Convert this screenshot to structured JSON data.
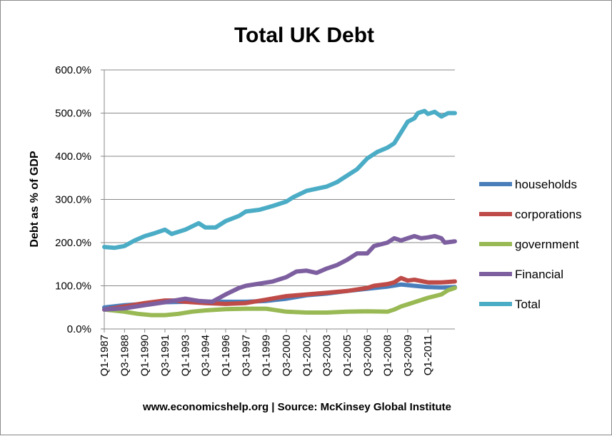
{
  "chart_data": {
    "type": "line",
    "title": "Total UK Debt",
    "ylabel": "Debt as % of GDP",
    "source_note": "www.economicshelp.org | Source: McKinsey Global Institute",
    "ylim": [
      0,
      600
    ],
    "y_ticks": [
      "0.0%",
      "100.0%",
      "200.0%",
      "300.0%",
      "400.0%",
      "500.0%",
      "600.0%"
    ],
    "x_tick_labels": [
      "Q1-1987",
      "Q3-1988",
      "Q1-1990",
      "Q3-1991",
      "Q1-1993",
      "Q3-1994",
      "Q1-1996",
      "Q3-1997",
      "Q1-1999",
      "Q3-2000",
      "Q1-2002",
      "Q3-2003",
      "Q1-2005",
      "Q3-2006",
      "Q1-2008",
      "Q3-2009",
      "Q1-2011"
    ],
    "x_tick_step_quarters": 6,
    "grid": "horizontal",
    "legend": "right",
    "series": [
      {
        "name": "households",
        "color": "#4a7ebb",
        "points": [
          [
            0,
            50
          ],
          [
            6,
            55
          ],
          [
            12,
            58
          ],
          [
            18,
            62
          ],
          [
            24,
            63
          ],
          [
            30,
            63
          ],
          [
            36,
            63
          ],
          [
            42,
            63
          ],
          [
            48,
            65
          ],
          [
            54,
            70
          ],
          [
            60,
            78
          ],
          [
            66,
            82
          ],
          [
            72,
            88
          ],
          [
            78,
            93
          ],
          [
            84,
            98
          ],
          [
            88,
            103
          ],
          [
            92,
            100
          ],
          [
            96,
            97
          ],
          [
            100,
            96
          ],
          [
            104,
            97
          ]
        ]
      },
      {
        "name": "corporations",
        "color": "#be4b48",
        "points": [
          [
            0,
            45
          ],
          [
            6,
            52
          ],
          [
            12,
            60
          ],
          [
            18,
            66
          ],
          [
            21,
            66
          ],
          [
            24,
            63
          ],
          [
            30,
            60
          ],
          [
            36,
            58
          ],
          [
            42,
            60
          ],
          [
            48,
            68
          ],
          [
            54,
            76
          ],
          [
            60,
            80
          ],
          [
            66,
            84
          ],
          [
            72,
            88
          ],
          [
            78,
            95
          ],
          [
            80,
            100
          ],
          [
            84,
            104
          ],
          [
            86,
            108
          ],
          [
            88,
            118
          ],
          [
            90,
            112
          ],
          [
            92,
            114
          ],
          [
            96,
            108
          ],
          [
            100,
            108
          ],
          [
            104,
            110
          ]
        ]
      },
      {
        "name": "government",
        "color": "#98b954",
        "points": [
          [
            0,
            45
          ],
          [
            6,
            40
          ],
          [
            10,
            35
          ],
          [
            14,
            32
          ],
          [
            18,
            32
          ],
          [
            22,
            35
          ],
          [
            26,
            40
          ],
          [
            30,
            43
          ],
          [
            36,
            46
          ],
          [
            42,
            47
          ],
          [
            48,
            47
          ],
          [
            54,
            40
          ],
          [
            60,
            38
          ],
          [
            66,
            38
          ],
          [
            72,
            40
          ],
          [
            78,
            41
          ],
          [
            84,
            40
          ],
          [
            86,
            45
          ],
          [
            88,
            52
          ],
          [
            92,
            62
          ],
          [
            96,
            72
          ],
          [
            100,
            80
          ],
          [
            102,
            90
          ],
          [
            104,
            95
          ]
        ]
      },
      {
        "name": "Financial",
        "color": "#7d5fa0",
        "points": [
          [
            0,
            45
          ],
          [
            6,
            48
          ],
          [
            12,
            55
          ],
          [
            18,
            62
          ],
          [
            24,
            70
          ],
          [
            28,
            65
          ],
          [
            32,
            63
          ],
          [
            36,
            80
          ],
          [
            40,
            95
          ],
          [
            42,
            100
          ],
          [
            46,
            105
          ],
          [
            50,
            110
          ],
          [
            54,
            120
          ],
          [
            57,
            133
          ],
          [
            60,
            135
          ],
          [
            63,
            130
          ],
          [
            66,
            140
          ],
          [
            69,
            148
          ],
          [
            72,
            160
          ],
          [
            75,
            175
          ],
          [
            78,
            175
          ],
          [
            80,
            192
          ],
          [
            84,
            200
          ],
          [
            86,
            210
          ],
          [
            88,
            205
          ],
          [
            90,
            210
          ],
          [
            92,
            215
          ],
          [
            94,
            210
          ],
          [
            96,
            212
          ],
          [
            98,
            215
          ],
          [
            100,
            210
          ],
          [
            101,
            200
          ],
          [
            104,
            203
          ]
        ]
      },
      {
        "name": "Total",
        "color": "#4bacc6",
        "points": [
          [
            0,
            190
          ],
          [
            3,
            188
          ],
          [
            6,
            192
          ],
          [
            9,
            205
          ],
          [
            12,
            215
          ],
          [
            15,
            222
          ],
          [
            18,
            230
          ],
          [
            20,
            220
          ],
          [
            24,
            230
          ],
          [
            28,
            245
          ],
          [
            30,
            235
          ],
          [
            33,
            235
          ],
          [
            36,
            250
          ],
          [
            40,
            262
          ],
          [
            42,
            272
          ],
          [
            46,
            276
          ],
          [
            50,
            285
          ],
          [
            54,
            295
          ],
          [
            56,
            305
          ],
          [
            60,
            320
          ],
          [
            63,
            325
          ],
          [
            66,
            330
          ],
          [
            69,
            340
          ],
          [
            72,
            355
          ],
          [
            75,
            370
          ],
          [
            78,
            395
          ],
          [
            81,
            410
          ],
          [
            84,
            420
          ],
          [
            86,
            430
          ],
          [
            88,
            455
          ],
          [
            90,
            480
          ],
          [
            92,
            488
          ],
          [
            93,
            500
          ],
          [
            95,
            505
          ],
          [
            96,
            498
          ],
          [
            98,
            503
          ],
          [
            100,
            492
          ],
          [
            102,
            500
          ],
          [
            104,
            500
          ]
        ]
      }
    ]
  }
}
